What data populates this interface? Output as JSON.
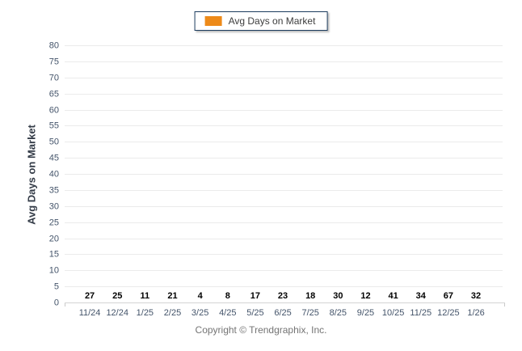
{
  "legend": {
    "label": "Avg Days on Market"
  },
  "footer": {
    "text": "Copyright © Trendgraphix, Inc."
  },
  "chart_data": {
    "type": "bar",
    "title": "",
    "categories": [
      "11/24",
      "12/24",
      "1/25",
      "2/25",
      "3/25",
      "4/25",
      "5/25",
      "6/25",
      "7/25",
      "8/25",
      "9/25",
      "10/25",
      "11/25",
      "12/25",
      "1/26"
    ],
    "values": [
      27,
      25,
      11,
      21,
      4,
      8,
      17,
      23,
      18,
      30,
      12,
      41,
      34,
      67,
      32
    ],
    "series_name": "Avg Days on Market",
    "xlabel": "",
    "ylabel": "Avg Days on Market",
    "ylim": [
      0,
      80
    ],
    "ytick_step": 5,
    "grid": "horizontal",
    "legend_position": "top-center",
    "bar_color": "#ED8A19",
    "value_label_color": "#000000",
    "tick_label_color": "#44546A",
    "grid_color": "#ebebeb"
  }
}
